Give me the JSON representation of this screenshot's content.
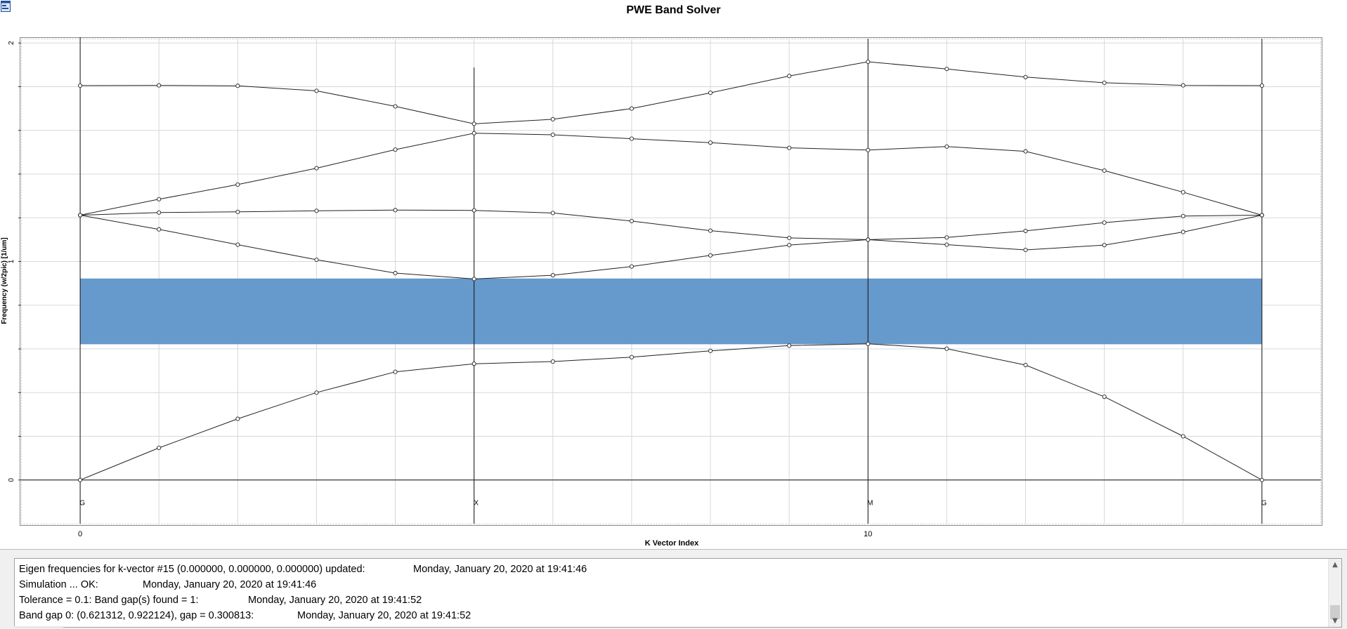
{
  "window": {
    "title": "PWE Band Solver"
  },
  "colors": {
    "gap_fill": "#6699cc",
    "band_line": "#222222",
    "grid": "#d8d8d8",
    "axis": "#000000"
  },
  "chart_data": {
    "type": "line",
    "title": "PWE Band Solver",
    "xlabel": "K Vector Index",
    "ylabel": "Frequency (w/2pic) [1/um]",
    "xlim": [
      -0.75,
      15.75
    ],
    "ylim": [
      -0.2,
      2.02
    ],
    "x_ticks": [
      0,
      10
    ],
    "y_ticks": [
      0,
      1,
      2
    ],
    "grid": true,
    "symmetry_points": [
      {
        "label": "G",
        "x": 0
      },
      {
        "label": "X",
        "x": 5
      },
      {
        "label": "M",
        "x": 10
      },
      {
        "label": "G",
        "x": 15
      }
    ],
    "x": [
      0,
      1,
      2,
      3,
      4,
      5,
      6,
      7,
      8,
      9,
      10,
      11,
      12,
      13,
      14,
      15
    ],
    "series": [
      {
        "values": [
          0.0,
          0.147,
          0.28,
          0.4,
          0.495,
          0.532,
          0.542,
          0.562,
          0.591,
          0.615,
          0.623,
          0.601,
          0.526,
          0.381,
          0.2,
          0.0
        ]
      },
      {
        "values": [
          1.212,
          1.147,
          1.077,
          1.008,
          0.947,
          0.92,
          0.937,
          0.977,
          1.028,
          1.075,
          1.1,
          1.077,
          1.053,
          1.075,
          1.135,
          1.212
        ]
      },
      {
        "values": [
          1.212,
          1.224,
          1.227,
          1.232,
          1.235,
          1.234,
          1.222,
          1.185,
          1.141,
          1.108,
          1.1,
          1.11,
          1.14,
          1.178,
          1.208,
          1.212
        ]
      },
      {
        "values": [
          1.212,
          1.285,
          1.352,
          1.427,
          1.512,
          1.587,
          1.58,
          1.562,
          1.544,
          1.52,
          1.51,
          1.526,
          1.504,
          1.416,
          1.317,
          1.212
        ]
      },
      {
        "values": [
          1.805,
          1.806,
          1.804,
          1.781,
          1.71,
          1.63,
          1.651,
          1.7,
          1.772,
          1.849,
          1.914,
          1.881,
          1.844,
          1.818,
          1.806,
          1.805
        ]
      }
    ],
    "band_gaps": [
      {
        "from": 0.621312,
        "to": 0.922124
      }
    ]
  },
  "log": {
    "entries": [
      {
        "message": "Eigen frequencies for k-vector #15 (0.000000, 0.000000, 0.000000) updated:",
        "time": "Monday, January 20, 2020 at 19:41:46"
      },
      {
        "message": "Simulation ... OK:",
        "time": "Monday, January 20, 2020 at 19:41:46"
      },
      {
        "message": "Tolerance = 0.1: Band gap(s) found = 1:",
        "time": "Monday, January 20, 2020 at 19:41:52"
      },
      {
        "message": "Band gap 0: (0.621312, 0.922124), gap = 0.300813:",
        "time": "Monday, January 20, 2020 at 19:41:52"
      }
    ],
    "scroll_up_icon": "chevron-up-icon",
    "scroll_down_icon": "chevron-down-icon"
  }
}
